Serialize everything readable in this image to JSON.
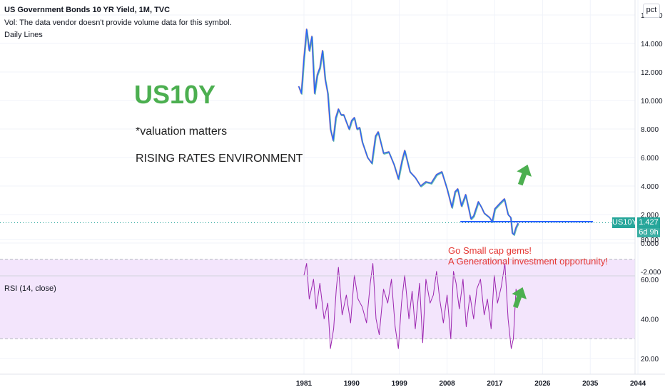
{
  "header": {
    "title": "US Government Bonds 10 YR Yield, 1M, TVC",
    "volume_note": "Vol: The data vendor doesn't provide volume data for this symbol.",
    "style_label": "Daily Lines"
  },
  "annotations": {
    "ticker": "US10Y",
    "valuation": "*valuation matters",
    "environment": "RISING RATES ENVIRONMENT",
    "callout_line1": "Go Small cap gems!",
    "callout_line2": "A Generational investment opportunity!"
  },
  "price_badge": {
    "symbol": "US10Y",
    "value": "1.427",
    "countdown": "6d 9h"
  },
  "scale_button": "pct",
  "rsi_label": "RSI (14, close)",
  "colors": {
    "green_arrow": "#4caf50",
    "horizontal_line": "#2962ff",
    "rsi_line": "#9c27b0",
    "rsi_band": "#f3e5fc",
    "callout_text": "#e53935",
    "badge_bg": "#26a69a"
  },
  "chart_data": [
    {
      "type": "line",
      "title": "US Government Bonds 10 YR Yield, 1M, TVC",
      "x_ticks": [
        "1981",
        "1990",
        "1999",
        "2008",
        "2017",
        "2026",
        "2035",
        "2044"
      ],
      "y_ticks": [
        "16.000",
        "14.000",
        "12.000",
        "10.000",
        "8.000",
        "6.000",
        "4.000",
        "2.000",
        "0.000",
        "-2.000"
      ],
      "ylim": [
        -2,
        16
      ],
      "xlim": [
        1978.5,
        2048
      ],
      "grid": true,
      "series": [
        {
          "x": [
            1980.0,
            1980.5,
            1981.0,
            1981.5,
            1982.0,
            1982.5,
            1983.0,
            1983.5,
            1984.0,
            1984.5,
            1985.0,
            1985.5,
            1986.0,
            1986.5,
            1987.0,
            1987.5,
            1988.0,
            1988.5,
            1989.0,
            1989.5,
            1990.0,
            1990.5,
            1991.0,
            1991.5,
            1992.0,
            1993.0,
            1993.8,
            1994.5,
            1995.0,
            1996.0,
            1997.0,
            1998.0,
            1998.8,
            1999.5,
            2000.0,
            2001.0,
            2002.0,
            2003.0,
            2004.0,
            2005.0,
            2006.0,
            2007.0,
            2008.0,
            2008.9,
            2009.5,
            2010.0,
            2010.7,
            2011.5,
            2012.5,
            2013.0,
            2013.9,
            2014.5,
            2015.0,
            2016.0,
            2016.5,
            2017.0,
            2018.0,
            2018.8,
            2019.5,
            2020.0,
            2020.3,
            2020.6,
            2021.0,
            2021.4
          ],
          "values": [
            11.0,
            10.5,
            13.0,
            15.0,
            13.5,
            14.5,
            10.5,
            11.8,
            12.3,
            13.5,
            11.5,
            10.5,
            8.0,
            7.2,
            8.8,
            9.4,
            9.0,
            9.0,
            8.5,
            8.0,
            8.6,
            8.8,
            8.0,
            8.1,
            7.1,
            6.0,
            5.6,
            7.5,
            7.8,
            6.3,
            6.4,
            5.5,
            4.5,
            5.8,
            6.5,
            5.0,
            4.6,
            4.0,
            4.3,
            4.2,
            4.8,
            5.0,
            3.8,
            2.5,
            3.6,
            3.8,
            2.6,
            3.4,
            1.7,
            1.9,
            2.9,
            2.5,
            2.1,
            1.8,
            1.5,
            2.4,
            2.8,
            3.1,
            2.0,
            1.8,
            0.7,
            0.6,
            1.1,
            1.4
          ]
        }
      ],
      "horizontal_line": {
        "y": 1.5,
        "x_start": 2010.5,
        "x_end": 2035.5
      },
      "last_value": 1.427
    },
    {
      "type": "line",
      "title": "RSI (14, close)",
      "y_ticks": [
        "80.00",
        "60.00",
        "40.00",
        "20.00"
      ],
      "ylim": [
        15,
        85
      ],
      "band": [
        30,
        70
      ],
      "series": [
        {
          "x": [
            1981.0,
            1981.5,
            1982.0,
            1982.8,
            1983.3,
            1984.0,
            1984.8,
            1985.5,
            1986.0,
            1986.6,
            1987.1,
            1987.5,
            1988.2,
            1989.0,
            1989.8,
            1990.5,
            1991.2,
            1992.0,
            1992.8,
            1993.5,
            1994.0,
            1994.6,
            1995.2,
            1996.0,
            1996.8,
            1997.5,
            1998.2,
            1998.8,
            1999.4,
            2000.0,
            2000.8,
            2001.4,
            2002.0,
            2002.8,
            2003.4,
            2004.0,
            2004.8,
            2005.4,
            2006.0,
            2006.6,
            2007.3,
            2008.0,
            2008.7,
            2009.2,
            2009.7,
            2010.3,
            2011.0,
            2011.6,
            2012.3,
            2013.0,
            2013.6,
            2014.3,
            2015.0,
            2015.6,
            2016.3,
            2016.9,
            2017.5,
            2018.2,
            2018.9,
            2019.5,
            2020.1,
            2020.5,
            2021.0,
            2021.4
          ],
          "values": [
            62,
            68,
            50,
            60,
            45,
            58,
            40,
            48,
            25,
            35,
            55,
            66,
            42,
            52,
            38,
            62,
            50,
            46,
            38,
            58,
            68,
            40,
            32,
            55,
            48,
            60,
            36,
            25,
            48,
            62,
            40,
            54,
            35,
            58,
            28,
            60,
            48,
            52,
            64,
            50,
            38,
            52,
            30,
            64,
            58,
            45,
            60,
            36,
            52,
            40,
            55,
            60,
            42,
            50,
            35,
            62,
            48,
            56,
            68,
            40,
            25,
            30,
            55,
            50
          ]
        }
      ]
    }
  ]
}
